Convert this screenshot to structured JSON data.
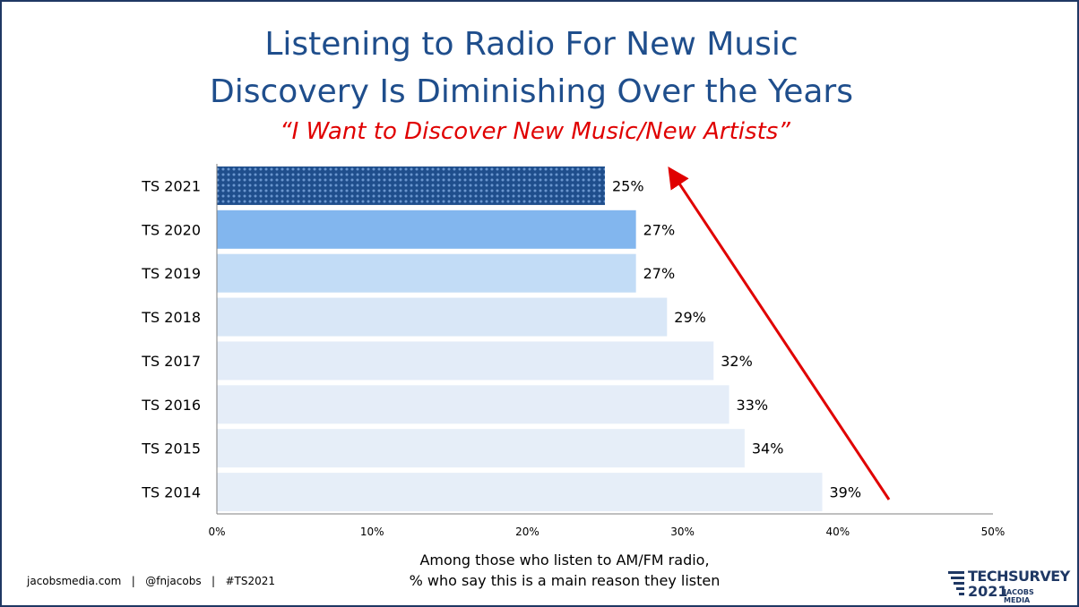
{
  "title_line1": "Listening to Radio For New Music",
  "title_line2": "Discovery Is Diminishing Over the Years",
  "subtitle": "“I Want to Discover New Music/New Artists”",
  "caption_line1": "Among those who listen to AM/FM radio,",
  "caption_line2": "% who say this is a main reason they listen",
  "footer": "jacobsmedia.com   |   @fnjacobs   |   #TS2021",
  "logo": {
    "line1": "TECHSURVEY",
    "line2": "2021",
    "line3": "JACOBS MEDIA"
  },
  "colors": {
    "TS 2021": "#1f4e8c",
    "TS 2020": "#82b6ee",
    "TS 2019": "#c2dcf6",
    "TS 2018": "#d9e7f7",
    "TS 2017": "#e3ecf8",
    "TS 2016": "#e5edf8",
    "TS 2015": "#e6eef8",
    "TS 2014": "#e6eef8",
    "arrow": "#e00000"
  },
  "chart_data": {
    "type": "bar",
    "orientation": "horizontal",
    "categories": [
      "TS 2021",
      "TS 2020",
      "TS 2019",
      "TS 2018",
      "TS 2017",
      "TS 2016",
      "TS 2015",
      "TS 2014"
    ],
    "values": [
      25,
      27,
      27,
      29,
      32,
      33,
      34,
      39
    ],
    "data_labels": [
      "25%",
      "27%",
      "27%",
      "29%",
      "32%",
      "33%",
      "34%",
      "39%"
    ],
    "xlim": [
      0,
      50
    ],
    "x_ticks": [
      "0%",
      "10%",
      "20%",
      "30%",
      "40%",
      "50%"
    ],
    "grid": false,
    "legend": false,
    "annotations": [
      "red arrow pointing up from TS 2014 to TS 2021"
    ]
  }
}
